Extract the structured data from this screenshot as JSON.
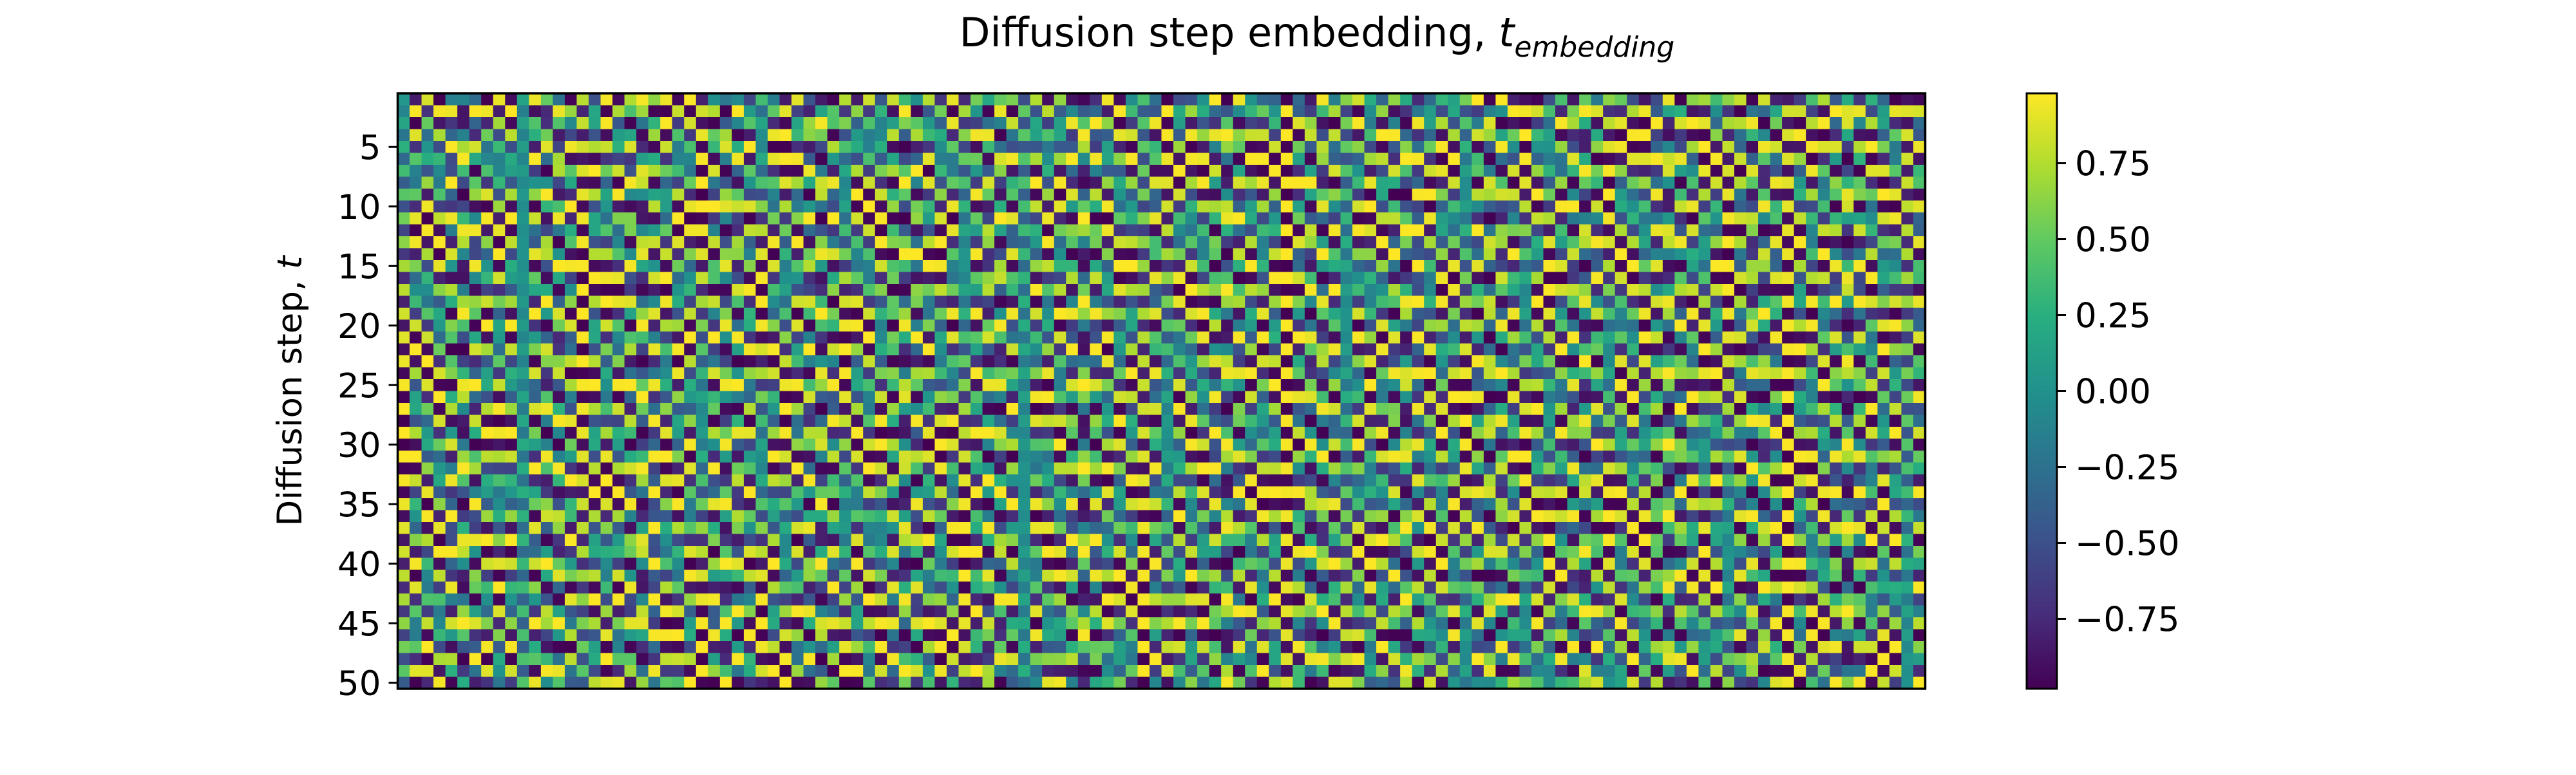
{
  "chart_data": {
    "type": "heatmap",
    "title": {
      "main": "Diffusion step embedding, ",
      "symbol": "t",
      "subscript": "embedding"
    },
    "ylabel": {
      "main": "Diffusion step, ",
      "symbol": "t"
    },
    "xlabel": "",
    "rows": 50,
    "columns": 128,
    "y_ticks": [
      5,
      10,
      15,
      20,
      25,
      30,
      35,
      40,
      45,
      50
    ],
    "y_tick_labels": [
      "5",
      "10",
      "15",
      "20",
      "25",
      "30",
      "35",
      "40",
      "45",
      "50"
    ],
    "colormap": "viridis",
    "colormap_stops": [
      "#440154",
      "#472d7b",
      "#3b528b",
      "#2c728e",
      "#21918c",
      "#28ae80",
      "#5ec962",
      "#addc30",
      "#fde725"
    ],
    "value_range": [
      -0.98,
      0.98
    ],
    "colorbar": {
      "ticks": [
        0.75,
        0.5,
        0.25,
        0.0,
        -0.25,
        -0.5,
        -0.75
      ],
      "tick_labels": [
        "0.75",
        "0.50",
        "0.25",
        "0.00",
        "−0.25",
        "−0.50",
        "−0.75"
      ]
    }
  }
}
